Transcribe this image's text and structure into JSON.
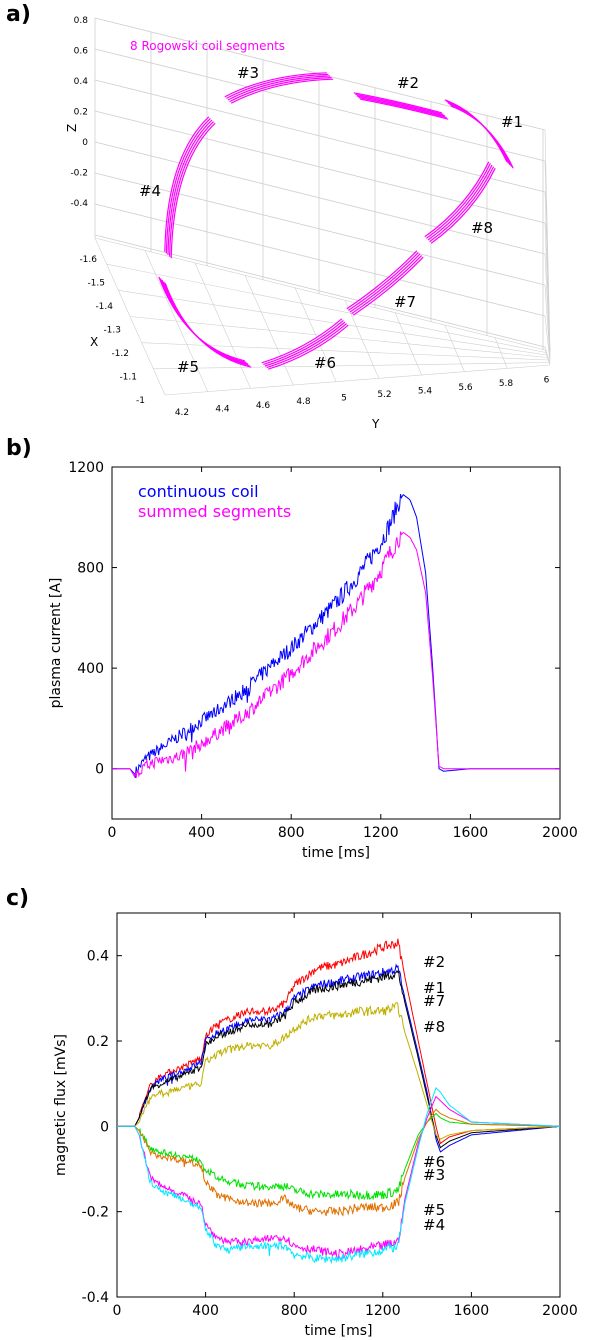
{
  "panel_labels": {
    "a": "a)",
    "b": "b)",
    "c": "c)"
  },
  "chart_data": [
    {
      "panel": "a",
      "type": "other",
      "title": "8 Rogowski coil segments",
      "xlabel": "X",
      "ylabel": "Y",
      "zlabel": "Z",
      "x_ticks": [
        "-1.6",
        "-1.5",
        "-1.4",
        "-1.3",
        "-1.2",
        "-1.1",
        "-1"
      ],
      "y_ticks": [
        "4.2",
        "4.4",
        "4.6",
        "4.8",
        "5",
        "5.2",
        "5.4",
        "5.6",
        "5.8",
        "6"
      ],
      "z_ticks": [
        "0.8",
        "0.6",
        "0.4",
        "0.2",
        "0",
        "-0.2",
        "-0.4"
      ],
      "segment_labels": [
        "#1",
        "#2",
        "#3",
        "#4",
        "#5",
        "#6",
        "#7",
        "#8"
      ],
      "colors": {
        "coil": "#ff00ff",
        "grid": "#cfcfcf"
      }
    },
    {
      "panel": "b",
      "type": "line",
      "xlabel": "time [ms]",
      "ylabel": "plasma current [A]",
      "xlim": [
        0,
        2000
      ],
      "ylim": [
        -200,
        1200
      ],
      "x_ticks": [
        0,
        400,
        800,
        1200,
        1600,
        2000
      ],
      "y_ticks": [
        0,
        400,
        800,
        1200
      ],
      "legend_position": "top-left",
      "series": [
        {
          "name": "continuous coil",
          "color": "#0000ff",
          "x": [
            0,
            80,
            100,
            120,
            150,
            200,
            300,
            400,
            500,
            600,
            700,
            800,
            900,
            1000,
            1100,
            1200,
            1250,
            1280,
            1300,
            1330,
            1360,
            1400,
            1430,
            1460,
            1480,
            1600,
            2000
          ],
          "y": [
            0,
            0,
            -20,
            5,
            40,
            70,
            130,
            190,
            250,
            320,
            400,
            480,
            570,
            660,
            770,
            900,
            990,
            1060,
            1090,
            1070,
            1000,
            780,
            420,
            0,
            -10,
            0,
            0
          ]
        },
        {
          "name": "summed segments",
          "color": "#ff00ff",
          "x": [
            0,
            80,
            100,
            120,
            150,
            200,
            300,
            400,
            500,
            600,
            700,
            800,
            900,
            1000,
            1100,
            1200,
            1250,
            1280,
            1300,
            1330,
            1360,
            1400,
            1430,
            1460,
            1480,
            1600,
            2000
          ],
          "y": [
            0,
            0,
            -30,
            -20,
            10,
            30,
            50,
            100,
            160,
            220,
            300,
            380,
            470,
            560,
            660,
            790,
            870,
            920,
            940,
            920,
            870,
            700,
            380,
            10,
            0,
            0,
            0
          ]
        }
      ]
    },
    {
      "panel": "c",
      "type": "line",
      "xlabel": "time [ms]",
      "ylabel": "magnetic flux [mVs]",
      "xlim": [
        0,
        2000
      ],
      "ylim": [
        -0.4,
        0.5
      ],
      "x_ticks": [
        0,
        400,
        800,
        1200,
        1600,
        2000
      ],
      "y_ticks": [
        -0.4,
        -0.2,
        0,
        0.2,
        0.4
      ],
      "y_tick_labels": [
        "-0.4",
        "-0.2",
        "0",
        "0.2",
        "0.4"
      ],
      "x": [
        0,
        80,
        100,
        150,
        200,
        300,
        380,
        400,
        450,
        500,
        600,
        700,
        760,
        800,
        900,
        1000,
        1100,
        1200,
        1270,
        1300,
        1360,
        1400,
        1440,
        1460,
        1500,
        1600,
        2000
      ],
      "series": [
        {
          "name": "#2",
          "color": "#ff0000",
          "y": [
            0,
            0,
            0.02,
            0.1,
            0.12,
            0.14,
            0.16,
            0.21,
            0.24,
            0.25,
            0.27,
            0.27,
            0.29,
            0.33,
            0.37,
            0.38,
            0.4,
            0.42,
            0.43,
            0.35,
            0.2,
            0.1,
            0.0,
            -0.04,
            -0.025,
            -0.01,
            0
          ]
        },
        {
          "name": "#1",
          "color": "#0000ff",
          "y": [
            0,
            0,
            0.02,
            0.09,
            0.11,
            0.13,
            0.15,
            0.2,
            0.22,
            0.23,
            0.25,
            0.25,
            0.27,
            0.3,
            0.33,
            0.34,
            0.35,
            0.36,
            0.37,
            0.3,
            0.17,
            0.08,
            -0.03,
            -0.06,
            -0.045,
            -0.02,
            0
          ]
        },
        {
          "name": "#7",
          "color": "#000000",
          "y": [
            0,
            0,
            0.02,
            0.09,
            0.1,
            0.12,
            0.14,
            0.19,
            0.21,
            0.22,
            0.24,
            0.24,
            0.26,
            0.29,
            0.32,
            0.33,
            0.34,
            0.35,
            0.36,
            0.29,
            0.16,
            0.07,
            -0.02,
            -0.05,
            -0.035,
            -0.015,
            0
          ]
        },
        {
          "name": "#8",
          "color": "#c0b000",
          "y": [
            0,
            0,
            0.01,
            0.07,
            0.08,
            0.09,
            0.1,
            0.15,
            0.17,
            0.18,
            0.19,
            0.19,
            0.21,
            0.23,
            0.26,
            0.26,
            0.27,
            0.27,
            0.28,
            0.22,
            0.12,
            0.05,
            -0.02,
            -0.03,
            -0.02,
            -0.01,
            0
          ]
        },
        {
          "name": "#6",
          "color": "#00e000",
          "y": [
            0,
            0,
            -0.01,
            -0.05,
            -0.06,
            -0.07,
            -0.08,
            -0.1,
            -0.12,
            -0.13,
            -0.14,
            -0.14,
            -0.14,
            -0.15,
            -0.16,
            -0.16,
            -0.16,
            -0.16,
            -0.15,
            -0.1,
            -0.02,
            0.01,
            0.03,
            0.02,
            0.01,
            0.005,
            0
          ]
        },
        {
          "name": "#3",
          "color": "#e07000",
          "y": [
            0,
            0,
            -0.01,
            -0.06,
            -0.07,
            -0.08,
            -0.09,
            -0.13,
            -0.16,
            -0.17,
            -0.18,
            -0.18,
            -0.17,
            -0.19,
            -0.2,
            -0.2,
            -0.19,
            -0.19,
            -0.18,
            -0.12,
            -0.03,
            0.01,
            0.04,
            0.03,
            0.02,
            0.005,
            0
          ]
        },
        {
          "name": "#5",
          "color": "#ff00ff",
          "y": [
            0,
            0,
            -0.02,
            -0.12,
            -0.14,
            -0.16,
            -0.18,
            -0.23,
            -0.26,
            -0.27,
            -0.27,
            -0.26,
            -0.26,
            -0.28,
            -0.29,
            -0.3,
            -0.29,
            -0.28,
            -0.27,
            -0.17,
            -0.04,
            0.02,
            0.07,
            0.06,
            0.04,
            0.01,
            0
          ]
        },
        {
          "name": "#4",
          "color": "#00e8ff",
          "y": [
            0,
            0,
            -0.02,
            -0.13,
            -0.15,
            -0.17,
            -0.19,
            -0.24,
            -0.28,
            -0.29,
            -0.28,
            -0.28,
            -0.28,
            -0.3,
            -0.31,
            -0.31,
            -0.3,
            -0.29,
            -0.28,
            -0.18,
            -0.05,
            0.03,
            0.09,
            0.08,
            0.05,
            0.01,
            0
          ]
        }
      ],
      "label_order": [
        "#2",
        "#1",
        "#7",
        "#8",
        "#6",
        "#3",
        "#5",
        "#4"
      ]
    }
  ]
}
